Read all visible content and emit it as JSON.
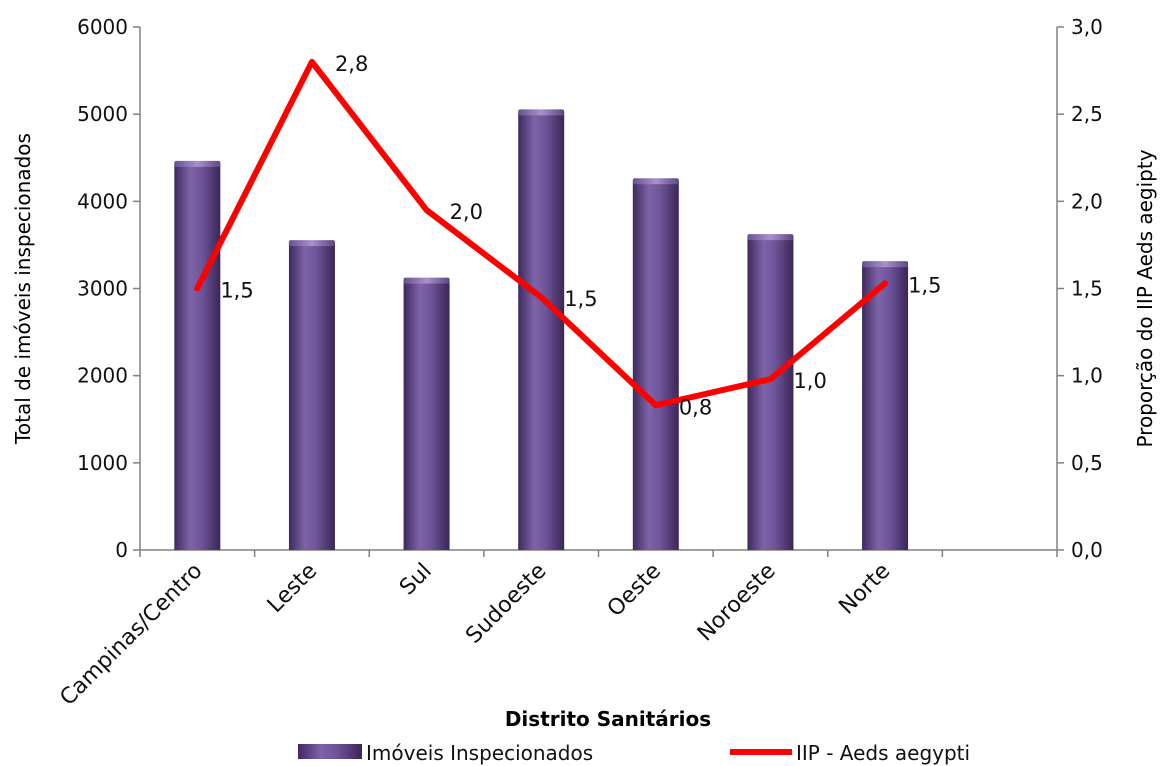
{
  "chart_data": {
    "type": "bar",
    "categories": [
      "Campinas/Centro",
      "Leste",
      "Sul",
      "Sudoeste",
      "Oeste",
      "Noroeste",
      "Norte"
    ],
    "series": [
      {
        "name": "Imóveis Inspecionados",
        "type": "bar",
        "axis": "left",
        "color": "#6b4f96",
        "values": [
          4430,
          3520,
          3090,
          5020,
          4230,
          3590,
          3280
        ]
      },
      {
        "name": "IIP - Aeds aegypti",
        "type": "line",
        "axis": "right",
        "color": "#ff0000",
        "values": [
          1.5,
          2.8,
          1.95,
          1.45,
          0.83,
          0.98,
          1.53
        ],
        "data_labels": [
          "1,5",
          "2,8",
          "2,0",
          "1,5",
          "0,8",
          "1,0",
          "1,5"
        ]
      }
    ],
    "xlabel": "Distrito Sanitários",
    "ylabel": "Total de imóveis inspecionados",
    "y2label": "Proporção do IIP Aeds aegipty",
    "ylim": [
      0,
      6000
    ],
    "y2lim": [
      0,
      3
    ],
    "yticks": [
      "0",
      "1000",
      "2000",
      "3000",
      "4000",
      "5000",
      "6000"
    ],
    "y2ticks": [
      "0,0",
      "0,5",
      "1,0",
      "1,5",
      "2,0",
      "2,5",
      "3,0"
    ],
    "grid": false,
    "legend_position": "bottom"
  }
}
